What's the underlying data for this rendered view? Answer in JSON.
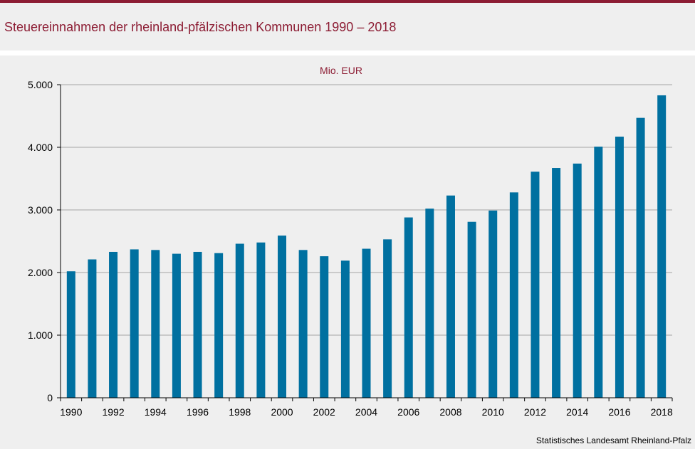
{
  "header": {
    "title": "Steuereinnahmen der rheinland-pfälzischen Kommunen 1990 – 2018"
  },
  "footer": {
    "source": "Statistisches Landesamt  Rheinland-Pfalz"
  },
  "colors": {
    "accent": "#8c1c33",
    "bar": "#0070a0",
    "background": "#efefef"
  },
  "chart_data": {
    "type": "bar",
    "unit_label": "Mio. EUR",
    "categories": [
      "1990",
      "1991",
      "1992",
      "1993",
      "1994",
      "1995",
      "1996",
      "1997",
      "1998",
      "1999",
      "2000",
      "2001",
      "2002",
      "2003",
      "2004",
      "2005",
      "2006",
      "2007",
      "2008",
      "2009",
      "2010",
      "2011",
      "2012",
      "2013",
      "2014",
      "2015",
      "2016",
      "2017",
      "2018"
    ],
    "values": [
      2020,
      2210,
      2330,
      2370,
      2360,
      2300,
      2330,
      2310,
      2460,
      2480,
      2590,
      2360,
      2260,
      2190,
      2380,
      2530,
      2880,
      3020,
      3230,
      2810,
      2990,
      3280,
      3610,
      3670,
      3740,
      4010,
      4170,
      4470,
      4830
    ],
    "tick_labels_x": [
      "1990",
      "1992",
      "1994",
      "1996",
      "1998",
      "2000",
      "2002",
      "2004",
      "2006",
      "2008",
      "2010",
      "2012",
      "2014",
      "2016",
      "2018"
    ],
    "y_ticks": [
      0,
      1000,
      2000,
      3000,
      4000,
      5000
    ],
    "y_tick_labels": [
      "0",
      "1.000",
      "2.000",
      "3.000",
      "4.000",
      "5.000"
    ],
    "ylim": [
      0,
      5000
    ],
    "grid": true,
    "legend": "none"
  }
}
